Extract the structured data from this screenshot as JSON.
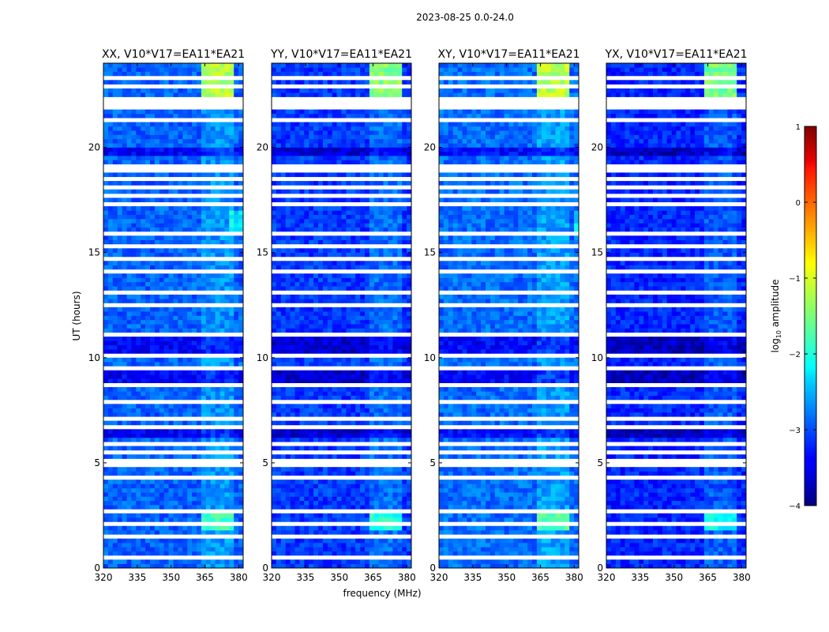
{
  "chart_data": {
    "type": "heatmap",
    "title": "2023-08-25 0.0-24.0",
    "xlabel": "frequency (MHz)",
    "ylabel": "UT (hours)",
    "xlim": [
      320,
      382
    ],
    "ylim": [
      0,
      24
    ],
    "x_ticks": [
      "320",
      "335",
      "350",
      "365",
      "380"
    ],
    "y_ticks": [
      "0",
      "5",
      "10",
      "15",
      "20"
    ],
    "panels": [
      {
        "name": "XX",
        "title": "XX, V10*V17=EA11*EA21",
        "base_level": -2.9,
        "bright_band": 7.0
      },
      {
        "name": "YY",
        "title": "YY, V10*V17=EA11*EA21",
        "base_level": -3.1,
        "bright_band": 0.6
      },
      {
        "name": "XY",
        "title": "XY, V10*V17=EA11*EA21",
        "base_level": -2.85,
        "bright_band": 3.0
      },
      {
        "name": "YX",
        "title": "YX, V10*V17=EA11*EA21",
        "base_level": -3.2,
        "bright_band": 0.0
      }
    ],
    "flagged_time_ranges_hours": [
      [
        0.5,
        0.6
      ],
      [
        0.95,
        1.05
      ],
      [
        1.5,
        1.6
      ],
      [
        2.05,
        2.15
      ],
      [
        2.65,
        2.75
      ],
      [
        3.35,
        3.5
      ],
      [
        4.2,
        4.3
      ],
      [
        4.8,
        4.9
      ],
      [
        5.1,
        5.2
      ],
      [
        5.5,
        5.6
      ],
      [
        5.9,
        6.0
      ],
      [
        6.7,
        6.8
      ],
      [
        7.1,
        7.2
      ],
      [
        7.8,
        7.9
      ],
      [
        8.35,
        8.45
      ],
      [
        8.7,
        8.8
      ],
      [
        9.4,
        9.5
      ],
      [
        10.0,
        10.15
      ],
      [
        10.55,
        10.65
      ],
      [
        11.0,
        11.15
      ],
      [
        12.5,
        12.7
      ],
      [
        13.1,
        13.2
      ],
      [
        14.1,
        14.25
      ],
      [
        14.7,
        14.8
      ],
      [
        15.2,
        15.3
      ],
      [
        15.9,
        16.0
      ],
      [
        16.8,
        16.9
      ],
      [
        17.2,
        17.35
      ],
      [
        17.7,
        17.8
      ],
      [
        18.1,
        18.2
      ],
      [
        18.5,
        18.6
      ],
      [
        18.8,
        19.2
      ],
      [
        19.4,
        19.5
      ],
      [
        20.8,
        20.9
      ],
      [
        21.3,
        21.45
      ],
      [
        21.8,
        22.1
      ],
      [
        22.25,
        22.35
      ],
      [
        22.6,
        22.7
      ],
      [
        22.9,
        23.0
      ],
      [
        23.3,
        23.4
      ],
      [
        23.55,
        23.65
      ],
      [
        23.75,
        23.85
      ]
    ],
    "dark_time_ranges_hours": [
      [
        6.2,
        6.6
      ],
      [
        8.9,
        9.3
      ],
      [
        10.0,
        11.0
      ],
      [
        19.7,
        20.0
      ]
    ],
    "rfi_band_mhz": [
      363,
      378
    ],
    "colorbar": {
      "label": "log10 amplitude",
      "range": [
        -4,
        1
      ],
      "ticks": [
        "1",
        "0",
        "−1",
        "−2",
        "−3",
        "−4"
      ],
      "colormap": "jet"
    }
  }
}
